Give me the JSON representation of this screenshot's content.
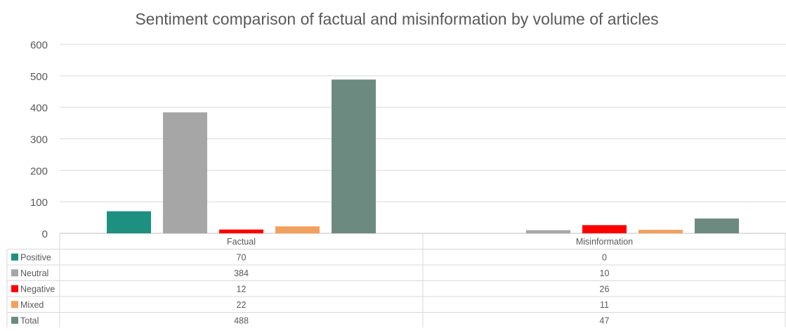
{
  "chart_data": {
    "type": "bar",
    "title": "Sentiment comparison of factual and misinformation by volume of articles",
    "categories": [
      "Factual",
      "Misinformation"
    ],
    "series": [
      {
        "name": "Positive",
        "color": "#1e9080",
        "values": [
          70,
          0
        ]
      },
      {
        "name": "Neutral",
        "color": "#a6a6a6",
        "values": [
          384,
          10
        ]
      },
      {
        "name": "Negative",
        "color": "#ff0000",
        "values": [
          12,
          26
        ]
      },
      {
        "name": "Mixed",
        "color": "#f2a05c",
        "values": [
          22,
          11
        ]
      },
      {
        "name": "Total",
        "color": "#6d8a80",
        "values": [
          488,
          47
        ]
      }
    ],
    "y_ticks": [
      0,
      100,
      200,
      300,
      400,
      500,
      600
    ],
    "ylim": [
      0,
      600
    ],
    "grid": true,
    "legend": "data-table"
  }
}
